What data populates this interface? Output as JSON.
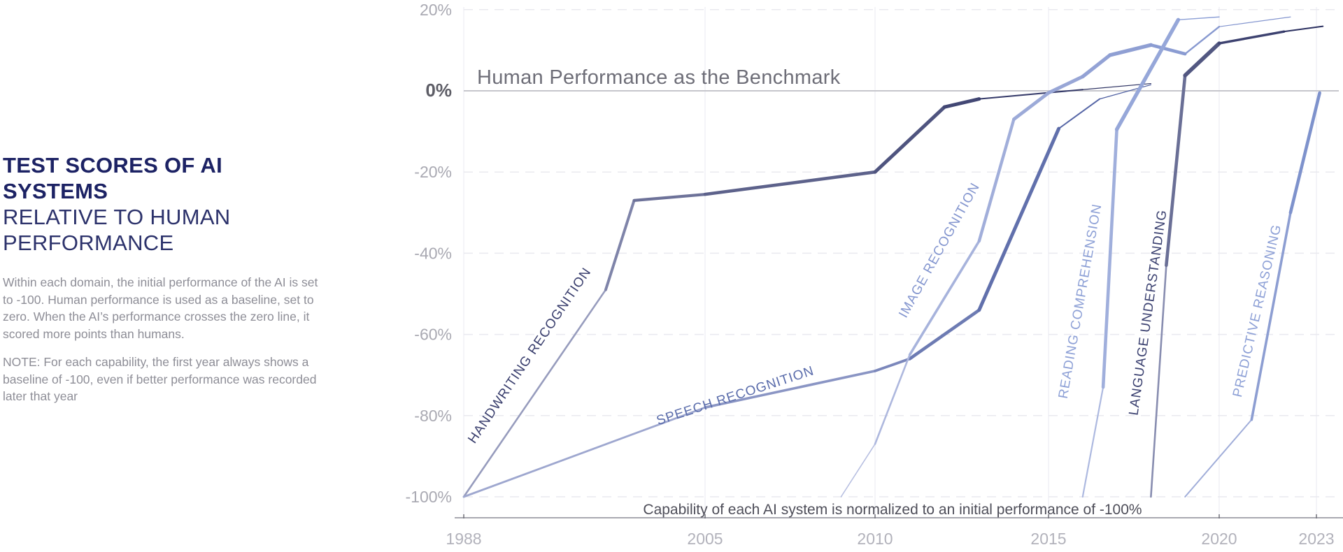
{
  "panel": {
    "title_line1": "TEST SCORES OF AI SYSTEMS",
    "title_line2": "RELATIVE TO HUMAN PERFORMANCE",
    "paragraph1": "Within each domain, the initial performance of the AI is set to -100. Human performance is used as a baseline, set to zero. When the AI’s performance crosses the zero line, it scored more points than humans.",
    "paragraph2": "NOTE: For each capability, the first year always shows a baseline of -100, even if better performance was recorded later that year"
  },
  "chart_data": {
    "type": "line",
    "title": "Test scores of AI systems relative to human performance",
    "benchmark_label": "Human Performance as the Benchmark",
    "note": "Capability of each AI system is normalized to an initial performance of -100%",
    "x_ticks": [
      "1988",
      "2005",
      "2010",
      "2015",
      "2020",
      "2023"
    ],
    "y_ticks": [
      {
        "label": "20%",
        "value": 20
      },
      {
        "label": "0%",
        "value": 0
      },
      {
        "label": "-20%",
        "value": -20
      },
      {
        "label": "-40%",
        "value": -40
      },
      {
        "label": "-60%",
        "value": -60
      },
      {
        "label": "-80%",
        "value": -80
      },
      {
        "label": "-100%",
        "value": -100
      }
    ],
    "ylim": [
      -107,
      21
    ],
    "grid": "dashed horizontal + faint vertical at year ticks",
    "series": [
      {
        "id": "handwriting",
        "label": "HANDWRITING RECOGNITION",
        "color": "#2b3060",
        "label_color": "#3a3f6e",
        "points": [
          [
            1988,
            -100
          ],
          [
            1998,
            -49
          ],
          [
            2000,
            -27
          ],
          [
            2005,
            -25.5
          ],
          [
            2010,
            -20
          ],
          [
            2012,
            -4
          ],
          [
            2013,
            -2
          ],
          [
            2016,
            0.3
          ],
          [
            2018,
            1.8
          ]
        ],
        "width_profile": [
          0.8,
          2.6,
          4.0,
          4.2,
          4.6,
          5.0,
          5.0,
          2.0,
          1.2
        ]
      },
      {
        "id": "speech",
        "label": "SPEECH RECOGNITION",
        "color": "#4c5da0",
        "label_color": "#5a6cab",
        "points": [
          [
            1988,
            -100
          ],
          [
            2005,
            -78
          ],
          [
            2010,
            -69
          ],
          [
            2011,
            -66
          ],
          [
            2013,
            -54
          ],
          [
            2015.3,
            -9.3
          ],
          [
            2016.5,
            -2
          ],
          [
            2018,
            1.5
          ]
        ],
        "width_profile": [
          0.8,
          2.8,
          3.6,
          3.8,
          4.6,
          5.0,
          2.0,
          1.2
        ]
      },
      {
        "id": "image",
        "label": "IMAGE RECOGNITION",
        "color": "#8496cf",
        "label_color": "#8496cf",
        "points": [
          [
            2009,
            -100
          ],
          [
            2010,
            -87
          ],
          [
            2011,
            -65
          ],
          [
            2013,
            -37
          ],
          [
            2014,
            -7
          ],
          [
            2015,
            -0.5
          ],
          [
            2016,
            3.5
          ],
          [
            2016.8,
            8.8
          ],
          [
            2018,
            11.3
          ],
          [
            2019,
            9.1
          ],
          [
            2020,
            15.8
          ],
          [
            2022.2,
            18.2
          ]
        ],
        "width_profile": [
          0.8,
          1.6,
          2.6,
          3.6,
          4.4,
          4.8,
          5.0,
          5.2,
          5.4,
          4.6,
          2.4,
          1.2
        ]
      },
      {
        "id": "reading",
        "label": "READING COMPREHENSION",
        "color": "#8da0d6",
        "label_color": "#8da0d6",
        "points": [
          [
            2016,
            -100
          ],
          [
            2016.6,
            -73
          ],
          [
            2017,
            -9.5
          ],
          [
            2018.8,
            17.5
          ],
          [
            2020,
            18.2
          ]
        ],
        "width_profile": [
          0.8,
          2.2,
          4.6,
          5.4,
          1.4
        ]
      },
      {
        "id": "language",
        "label": "LANGUAGE UNDERSTANDING",
        "color": "#2b3060",
        "label_color": "#3c4271",
        "points": [
          [
            2018,
            -100
          ],
          [
            2018.45,
            -43
          ],
          [
            2019,
            3.8
          ],
          [
            2020,
            11.7
          ],
          [
            2022,
            14.6
          ],
          [
            2023.2,
            15.9
          ]
        ],
        "width_profile": [
          0.8,
          2.6,
          4.6,
          5.6,
          3.4,
          2.0
        ]
      },
      {
        "id": "predictive",
        "label": "PREDICTIVE REASONING",
        "color": "#7e92cc",
        "label_color": "#8da0d6",
        "points": [
          [
            2019,
            -100
          ],
          [
            2021,
            -81
          ],
          [
            2022.2,
            -30
          ],
          [
            2023.1,
            -0.5
          ]
        ],
        "width_profile": [
          0.8,
          2.0,
          3.6,
          4.6
        ]
      }
    ],
    "colors": {
      "line_start_fade": "#c9cee8",
      "zero_line": "#c6c6cc",
      "gridline": "#e9e9ef",
      "vertical_gridline": "#f0f0f5",
      "axis_line": "#a9a9b1",
      "y_tick_text": "#a9a9b2",
      "y_tick_zero_text": "#5d5d66",
      "x_tick_text": "#b2b2bb",
      "benchmark_text": "#6e6e78",
      "note_text": "#4e4e59"
    }
  }
}
